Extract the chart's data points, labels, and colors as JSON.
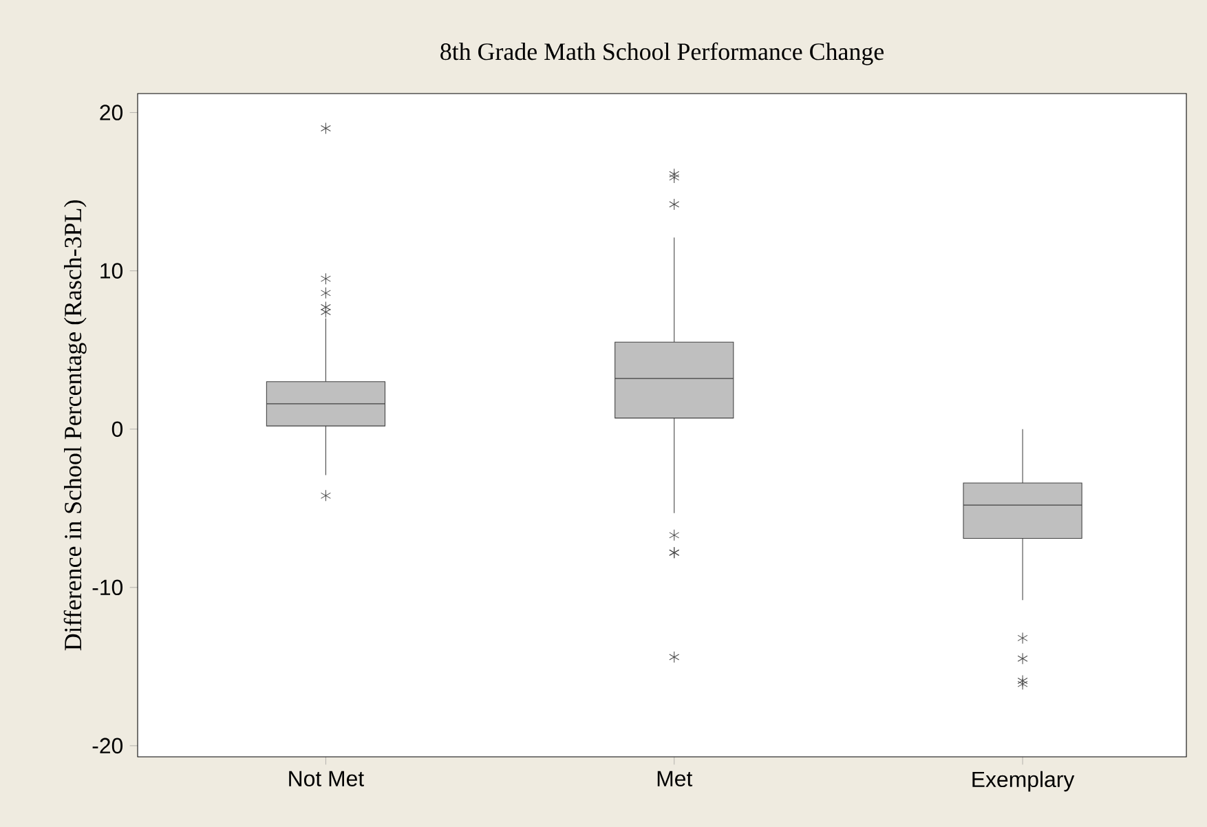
{
  "chart_data": {
    "type": "box",
    "title": "8th Grade Math School Performance Change",
    "ylabel": "Difference in School Percentage (Rasch-3PL)",
    "categories": [
      "Not Met",
      "Met",
      "Exemplary"
    ],
    "boxes": [
      {
        "low": -2.9,
        "q1": 0.2,
        "median": 1.6,
        "q3": 3.0,
        "high": 7.0,
        "outliers": [
          19.0,
          9.5,
          8.6,
          7.7,
          7.4,
          -4.2
        ]
      },
      {
        "low": -5.3,
        "q1": 0.7,
        "median": 3.2,
        "q3": 5.5,
        "high": 12.1,
        "outliers": [
          16.1,
          15.9,
          14.2,
          -6.7,
          -7.8,
          -7.8,
          -14.4
        ]
      },
      {
        "low": -10.8,
        "q1": -6.9,
        "median": -4.8,
        "q3": -3.4,
        "high": 0.0,
        "outliers": [
          -13.2,
          -14.5,
          -15.9,
          -16.1
        ]
      }
    ],
    "color": "#bfbfbf",
    "marker": "star",
    "ylim": [
      -20.7,
      21.2
    ],
    "yticks": [
      -20,
      -10,
      0,
      10,
      20
    ]
  }
}
